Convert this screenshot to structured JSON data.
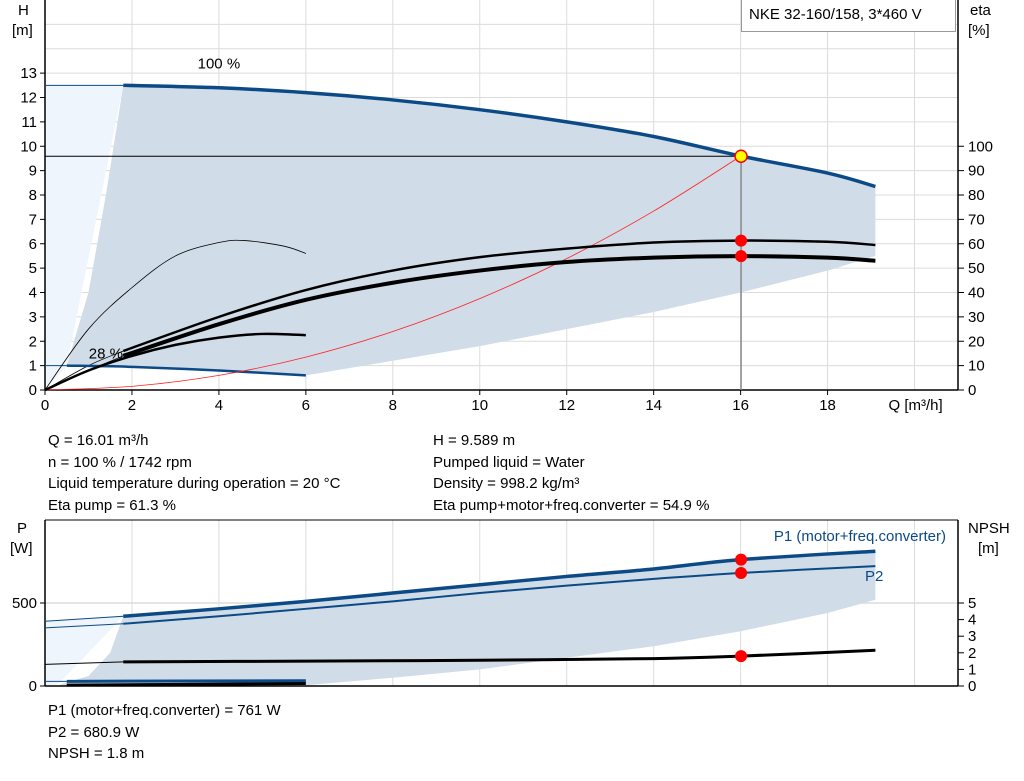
{
  "chart_data": [
    {
      "type": "line",
      "title": "NKE 32-160/158, 3*460 V",
      "xlabel": "Q [m³/h]",
      "ylabel": "H\n[m]",
      "y2label": "eta\n[%]",
      "xlim": [
        0,
        21
      ],
      "ylim": [
        0,
        16
      ],
      "y2lim": [
        0,
        160
      ],
      "xticks": [
        0,
        2,
        4,
        6,
        8,
        10,
        12,
        14,
        16,
        18
      ],
      "yticks": [
        0,
        1,
        2,
        3,
        4,
        5,
        6,
        7,
        8,
        9,
        10,
        11,
        12,
        13
      ],
      "y2ticks": [
        0,
        10,
        20,
        30,
        40,
        50,
        60,
        70,
        80,
        90,
        100
      ],
      "grid": true,
      "annotations": [
        {
          "text": "100 %",
          "x": 4,
          "y": 13.2
        },
        {
          "text": "28 %",
          "x": 1.4,
          "y": 1.3
        }
      ],
      "series": [
        {
          "role": "H 100 %",
          "axis": "H",
          "color": "#0b4a86",
          "x": [
            1.8,
            4,
            6,
            8,
            10,
            12,
            14,
            16,
            18,
            19.1
          ],
          "y": [
            12.5,
            12.4,
            12.2,
            11.9,
            11.5,
            11.0,
            10.4,
            9.6,
            8.9,
            8.35
          ]
        },
        {
          "role": "H 28 %",
          "axis": "H",
          "color": "#0b4a86",
          "x": [
            0.5,
            2,
            4,
            6
          ],
          "y": [
            1.0,
            0.95,
            0.8,
            0.6
          ]
        },
        {
          "role": "system curve",
          "axis": "H",
          "color": "#ff2020",
          "x": [
            0,
            2,
            4,
            6,
            8,
            10,
            12,
            14,
            16
          ],
          "y": [
            0,
            0.15,
            0.6,
            1.35,
            2.4,
            3.75,
            5.39,
            7.34,
            9.589
          ]
        },
        {
          "role": "eta pump 100 %",
          "axis": "eta",
          "color": "#000000",
          "x": [
            1.8,
            4,
            6,
            8,
            10,
            12,
            14,
            16,
            18,
            19.1
          ],
          "y": [
            16,
            30,
            41,
            49,
            54.5,
            58,
            60.5,
            61.3,
            60.8,
            59.5
          ]
        },
        {
          "role": "eta total 100 %",
          "axis": "eta",
          "color": "#000000",
          "x": [
            1.8,
            4,
            6,
            8,
            10,
            12,
            14,
            16,
            18,
            19.1
          ],
          "y": [
            14,
            27,
            37,
            44,
            49,
            52.5,
            54.3,
            54.9,
            54.3,
            53
          ]
        },
        {
          "role": "eta pump 28 %",
          "axis": "eta",
          "color": "#000000",
          "x": [
            0,
            1,
            2,
            3,
            4,
            4.6,
            5.5,
            6
          ],
          "y": [
            0,
            25,
            42,
            55,
            60.5,
            61.3,
            59,
            56
          ]
        },
        {
          "role": "eta total 28 %",
          "axis": "eta",
          "color": "#000000",
          "x": [
            0,
            1,
            2,
            3,
            4,
            5,
            6
          ],
          "y": [
            0,
            8,
            14,
            18.5,
            21.5,
            23,
            22.5
          ]
        }
      ],
      "duty_point": {
        "Q": 16.01,
        "H": 9.589,
        "eta_pump": 61.3,
        "eta_total": 54.9
      }
    },
    {
      "type": "line",
      "ylabel": "P\n[W]",
      "y2label": "NPSH\n[m]",
      "xlim": [
        0,
        21
      ],
      "ylim": [
        0,
        1000
      ],
      "y2lim": [
        0,
        10
      ],
      "xticks": [
        0,
        2,
        4,
        6,
        8,
        10,
        12,
        14,
        16,
        18
      ],
      "yticks": [
        0,
        500
      ],
      "y2ticks": [
        0,
        1,
        2,
        3,
        4,
        5
      ],
      "grid": true,
      "series": [
        {
          "name": "P1 (motor+freq.converter)",
          "axis": "P",
          "color": "#0b4a86",
          "x": [
            1.8,
            4,
            6,
            8,
            10,
            12,
            14,
            16,
            19.1
          ],
          "y": [
            420,
            465,
            510,
            560,
            610,
            660,
            705,
            761,
            812
          ]
        },
        {
          "name": "P2",
          "axis": "P",
          "color": "#0b4a86",
          "x": [
            1.8,
            4,
            6,
            8,
            10,
            12,
            14,
            16,
            19.1
          ],
          "y": [
            375,
            420,
            465,
            510,
            560,
            605,
            645,
            681,
            722
          ]
        },
        {
          "role": "NPSH",
          "axis": "NPSH",
          "color": "#000000",
          "x": [
            1.8,
            6,
            10,
            14,
            16,
            19.1
          ],
          "y": [
            1.45,
            1.5,
            1.55,
            1.65,
            1.8,
            2.15
          ]
        },
        {
          "role": "P1 28 %",
          "axis": "P",
          "color": "#0b4a86",
          "x": [
            0.5,
            6
          ],
          "y": [
            28,
            32
          ]
        },
        {
          "role": "NPSH 28 %",
          "axis": "NPSH",
          "color": "#000000",
          "x": [
            0.5,
            6
          ],
          "y": [
            0.05,
            0.15
          ]
        }
      ],
      "duty_point": {
        "Q": 16.01,
        "P1": 761,
        "P2": 680.9,
        "NPSH": 1.8
      }
    }
  ],
  "info_top": {
    "left": [
      "Q = 16.01 m³/h",
      "n = 100 % / 1742 rpm",
      "Liquid temperature during operation = 20 °C",
      "Eta pump = 61.3 %"
    ],
    "right": [
      "H = 9.589 m",
      "Pumped liquid = Water",
      "Density = 998.2 kg/m³",
      "Eta pump+motor+freq.converter = 54.9 %"
    ]
  },
  "info_bottom": [
    "P1 (motor+freq.converter) = 761 W",
    "P2 = 680.9 W",
    "NPSH = 1.8 m"
  ],
  "colors": {
    "curve_blue": "#0b4a86",
    "range_fill": "#d0dce7",
    "range_fill_light": "#eef5fc",
    "system": "#ff2020",
    "marker": "#ff0000",
    "duty_marker": "#ffff00",
    "grid": "#dcdcdc"
  }
}
